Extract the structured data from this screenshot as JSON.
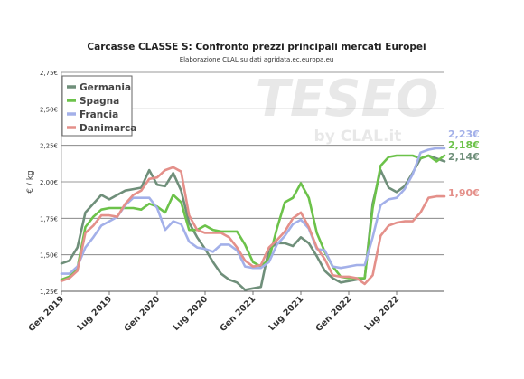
{
  "chart_data": {
    "type": "line",
    "title": "Carcasse CLASSE S: Confronto prezzi principali mercati Europei",
    "subtitle": "Elaborazione CLAL su dati agridata.ec.europa.eu",
    "ylabel": "€ / kg",
    "xlabel": "",
    "watermark": {
      "main": "TESEO",
      "sub": "by CLAL.it"
    },
    "ylim": [
      1.25,
      2.75
    ],
    "yticks": [
      1.25,
      1.5,
      1.75,
      2.0,
      2.25,
      2.5,
      2.75
    ],
    "ytick_labels": [
      "1,25€",
      "1,50€",
      "1,75€",
      "2,00€",
      "2,25€",
      "2,50€",
      "2,75€"
    ],
    "xticks": [
      {
        "label": "Gen 2019",
        "index": 0
      },
      {
        "label": "Lug 2019",
        "index": 6
      },
      {
        "label": "Gen 2020",
        "index": 12
      },
      {
        "label": "Lug 2020",
        "index": 18
      },
      {
        "label": "Gen 2021",
        "index": 24
      },
      {
        "label": "Lug 2021",
        "index": 30
      },
      {
        "label": "Gen 2022",
        "index": 36
      },
      {
        "label": "Lug 2022",
        "index": 42
      }
    ],
    "x_count": 49,
    "grid": true,
    "legend_position": "top-left",
    "series": [
      {
        "name": "Germania",
        "color": "#6f8f7a",
        "end_label": "2,14€",
        "values": [
          1.44,
          1.46,
          1.55,
          1.79,
          1.85,
          1.91,
          1.88,
          1.91,
          1.94,
          1.95,
          1.96,
          2.08,
          1.98,
          1.97,
          2.06,
          1.94,
          1.72,
          1.62,
          1.54,
          1.45,
          1.37,
          1.33,
          1.31,
          1.26,
          1.27,
          1.28,
          1.54,
          1.58,
          1.58,
          1.56,
          1.62,
          1.58,
          1.49,
          1.39,
          1.34,
          1.31,
          1.32,
          1.33,
          1.34,
          1.85,
          2.08,
          1.96,
          1.93,
          1.97,
          2.06,
          2.16,
          2.18,
          2.16,
          2.14
        ]
      },
      {
        "name": "Spagna",
        "color": "#6cc24a",
        "end_label": "2,18€",
        "values": [
          1.33,
          1.35,
          1.41,
          1.69,
          1.76,
          1.81,
          1.82,
          1.82,
          1.82,
          1.82,
          1.81,
          1.85,
          1.83,
          1.79,
          1.91,
          1.86,
          1.67,
          1.67,
          1.7,
          1.67,
          1.66,
          1.66,
          1.66,
          1.57,
          1.45,
          1.42,
          1.47,
          1.68,
          1.86,
          1.89,
          1.99,
          1.89,
          1.65,
          1.52,
          1.42,
          1.35,
          1.34,
          1.34,
          1.34,
          1.82,
          2.11,
          2.17,
          2.18,
          2.18,
          2.18,
          2.16,
          2.18,
          2.14,
          2.18
        ]
      },
      {
        "name": "Francia",
        "color": "#a3b0e9",
        "end_label": "2,23€",
        "values": [
          1.37,
          1.37,
          1.42,
          1.55,
          1.62,
          1.7,
          1.73,
          1.76,
          1.84,
          1.89,
          1.89,
          1.89,
          1.82,
          1.67,
          1.73,
          1.71,
          1.59,
          1.55,
          1.54,
          1.52,
          1.57,
          1.57,
          1.53,
          1.42,
          1.41,
          1.41,
          1.45,
          1.57,
          1.63,
          1.71,
          1.74,
          1.68,
          1.54,
          1.53,
          1.42,
          1.41,
          1.42,
          1.43,
          1.43,
          1.62,
          1.84,
          1.88,
          1.89,
          1.95,
          2.05,
          2.2,
          2.22,
          2.23,
          2.23
        ]
      },
      {
        "name": "Danimarca",
        "color": "#e4908a",
        "end_label": "1,90€",
        "values": [
          1.32,
          1.34,
          1.39,
          1.65,
          1.7,
          1.77,
          1.77,
          1.76,
          1.85,
          1.91,
          1.94,
          2.02,
          2.03,
          2.08,
          2.1,
          2.07,
          1.77,
          1.67,
          1.65,
          1.65,
          1.65,
          1.62,
          1.55,
          1.46,
          1.42,
          1.43,
          1.55,
          1.6,
          1.66,
          1.75,
          1.79,
          1.69,
          1.55,
          1.47,
          1.36,
          1.35,
          1.35,
          1.34,
          1.3,
          1.36,
          1.63,
          1.7,
          1.72,
          1.73,
          1.73,
          1.79,
          1.89,
          1.9,
          1.9
        ]
      }
    ]
  }
}
